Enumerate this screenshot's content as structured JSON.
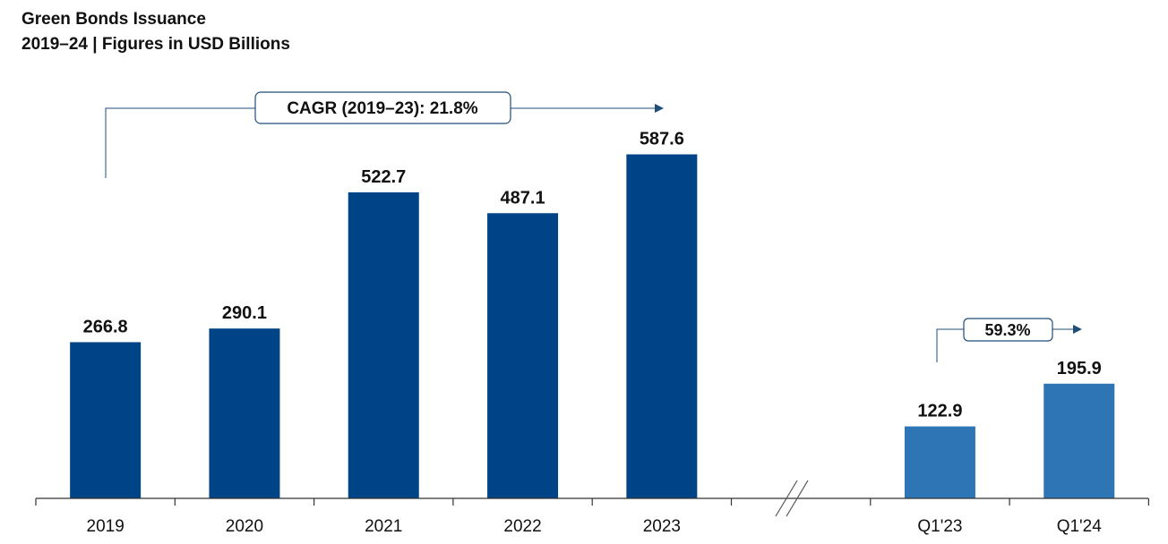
{
  "header": {
    "title": "Green Bonds Issuance",
    "subtitle": "2019–24 | Figures in USD Billions"
  },
  "chart_data": {
    "type": "bar",
    "categories": [
      "2019",
      "2020",
      "2021",
      "2022",
      "2023",
      "Q1'23",
      "Q1'24"
    ],
    "values": [
      266.8,
      290.1,
      522.7,
      487.1,
      587.6,
      122.9,
      195.9
    ],
    "data_labels": [
      "266.8",
      "290.1",
      "522.7",
      "487.1",
      "587.6",
      "122.9",
      "195.9"
    ],
    "title": "Green Bonds Issuance",
    "subtitle": "2019–24 | Figures in USD Billions",
    "xlabel": "",
    "ylabel": "",
    "ylim": [
      0,
      600
    ],
    "grid": false,
    "axis_break_after": "2023",
    "colors": {
      "annual": "#004488",
      "quarterly": "#2e75b6",
      "annotation": "#1f4e79"
    },
    "annotations": [
      {
        "text": "CAGR (2019–23):  21.8%",
        "from": "2019",
        "to": "2023"
      },
      {
        "text": "59.3%",
        "from": "Q1'23",
        "to": "Q1'24"
      }
    ]
  }
}
